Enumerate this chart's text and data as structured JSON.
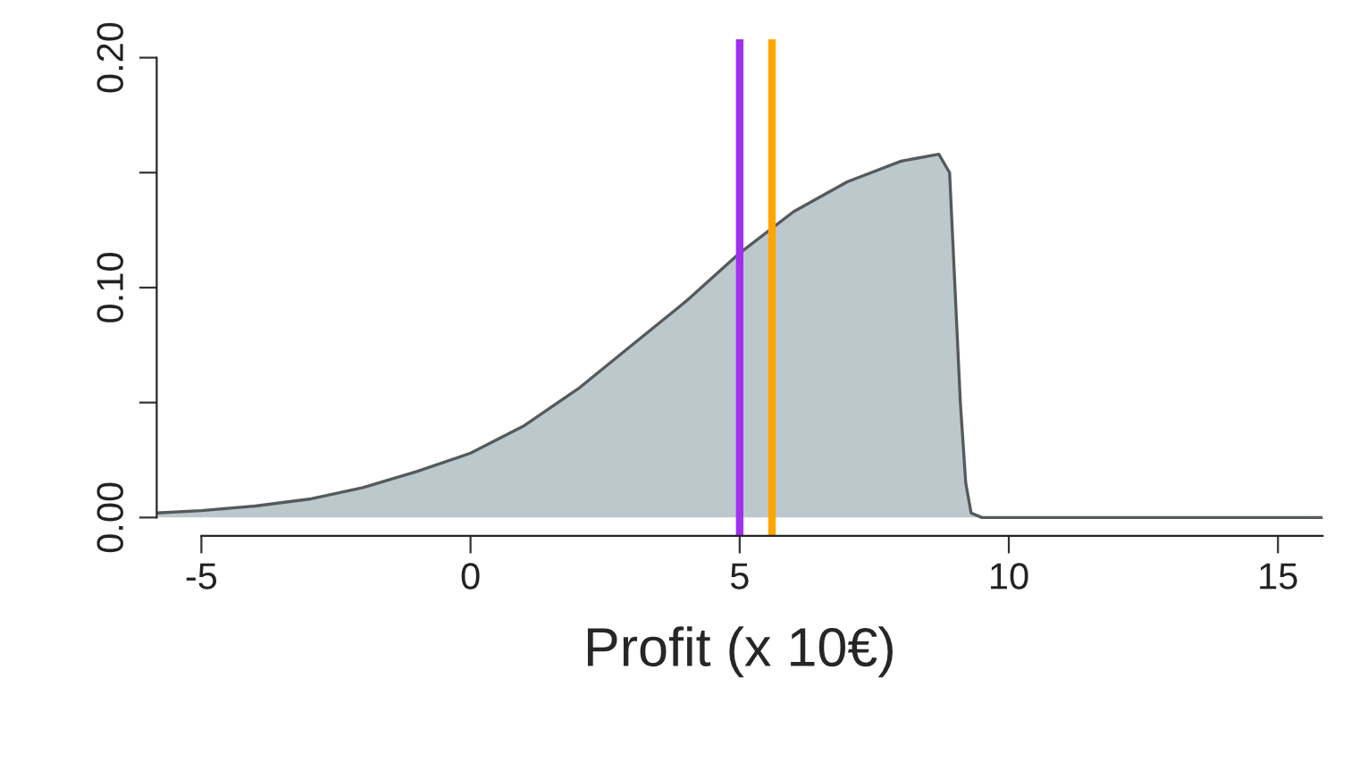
{
  "chart_data": {
    "type": "area",
    "xlabel": "Profit (x 10€)",
    "series": [
      {
        "color": "#bcc8cc",
        "x": [
          -5.83,
          -5,
          -4,
          -3,
          -2,
          -1,
          0,
          1,
          2,
          3,
          4,
          5,
          6,
          7,
          8,
          8.7,
          8.9,
          9.0,
          9.1,
          9.2,
          9.3,
          9.5,
          15.83
        ],
        "values": [
          0.002,
          0.003,
          0.005,
          0.008,
          0.013,
          0.02,
          0.028,
          0.04,
          0.056,
          0.075,
          0.094,
          0.115,
          0.133,
          0.146,
          0.155,
          0.158,
          0.15,
          0.1,
          0.05,
          0.015,
          0.002,
          0,
          0
        ]
      }
    ],
    "xlim": [
      -5.83,
      15.83
    ],
    "ylim": [
      -0.008,
      0.208
    ],
    "xticks": [
      -5,
      0,
      5,
      10,
      15
    ],
    "yticks": [
      {
        "value": 0,
        "label": "0.00"
      },
      {
        "value": 0.05,
        "label": null
      },
      {
        "value": 0.1,
        "label": "0.10"
      },
      {
        "value": 0.15,
        "label": null
      },
      {
        "value": 0.2,
        "label": "0.20"
      }
    ],
    "ref_lines": [
      {
        "axis": "x",
        "value": 5.0,
        "color": "#a02ff0"
      },
      {
        "axis": "x",
        "value": 5.6,
        "color": "#ffa500"
      }
    ],
    "grid": false,
    "legend": false
  }
}
